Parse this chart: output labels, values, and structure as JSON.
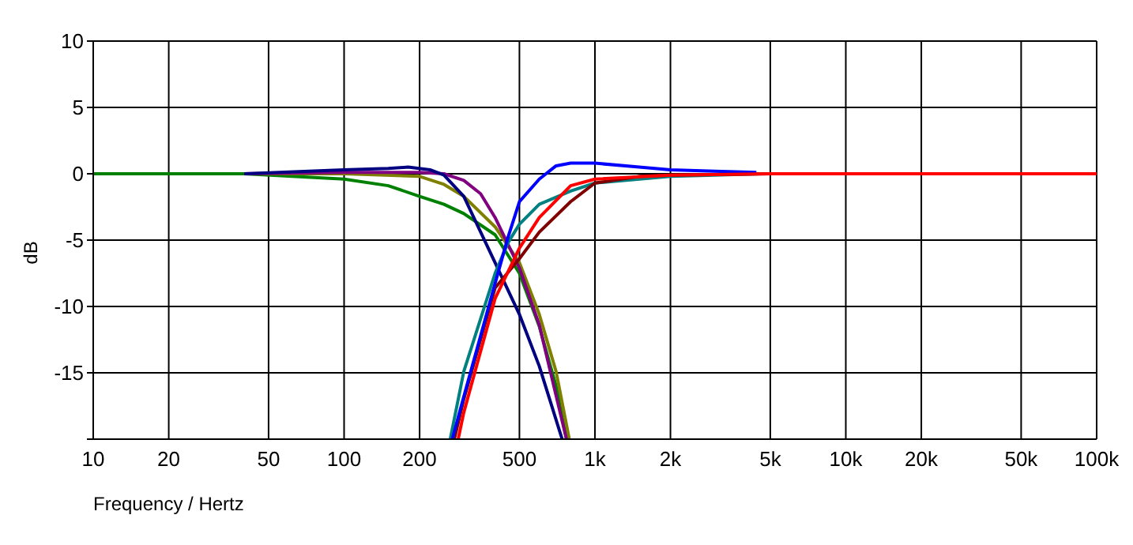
{
  "chart_data": {
    "type": "line",
    "xlabel": "Frequency / Hertz",
    "ylabel": "dB",
    "log": "x",
    "grid": true,
    "marker": "none",
    "line_style": "solid",
    "xlim": [
      10,
      100000
    ],
    "xticks": [
      10,
      20,
      50,
      100,
      200,
      500,
      {
        "value": 1000,
        "label": "1k"
      },
      {
        "value": 2000,
        "label": "2k"
      },
      {
        "value": 5000,
        "label": "5k"
      },
      {
        "value": 10000,
        "label": "10k"
      },
      {
        "value": 20000,
        "label": "20k"
      },
      {
        "value": 50000,
        "label": "50k"
      },
      {
        "value": 100000,
        "label": "100k"
      }
    ],
    "ylim": [
      -20,
      10
    ],
    "yticks": [
      {
        "value": -20,
        "label": null
      },
      -15,
      -10,
      -5,
      0,
      5,
      10
    ],
    "series": [
      {
        "color": "#008000",
        "x": [
          10,
          40,
          100,
          150,
          200,
          250,
          300,
          400,
          500,
          600,
          700,
          770
        ],
        "values": [
          0,
          0,
          -0.4,
          -0.9,
          -1.7,
          -2.3,
          -3.0,
          -4.6,
          -7.5,
          -11.5,
          -16,
          -20
        ]
      },
      {
        "color": "#808000",
        "x": [
          40,
          100,
          200,
          250,
          300,
          400,
          500,
          600,
          700,
          790
        ],
        "values": [
          0,
          0,
          -0.2,
          -0.8,
          -1.7,
          -4,
          -6.7,
          -10.6,
          -14.9,
          -20
        ]
      },
      {
        "color": "#800080",
        "x": [
          40,
          100,
          200,
          250,
          300,
          350,
          400,
          500,
          600,
          770
        ],
        "values": [
          0,
          0.1,
          0.1,
          0,
          -0.5,
          -1.5,
          -3.3,
          -7.1,
          -11.4,
          -20
        ]
      },
      {
        "color": "#000080",
        "x": [
          40,
          100,
          150,
          180,
          220,
          250,
          300,
          400,
          500,
          600,
          740
        ],
        "values": [
          0,
          0.3,
          0.4,
          0.5,
          0.3,
          -0.1,
          -1.7,
          -6.7,
          -10.6,
          -14.5,
          -20
        ]
      },
      {
        "color": "#008080",
        "x": [
          265,
          300,
          400,
          450,
          500,
          600,
          800,
          1000,
          2000,
          3000,
          4500
        ],
        "values": [
          -20,
          -14.9,
          -7.5,
          -5.2,
          -3.8,
          -2.3,
          -1.3,
          -0.7,
          -0.2,
          -0.1,
          0
        ]
      },
      {
        "color": "#800000",
        "x": [
          275,
          300,
          400,
          500,
          600,
          800,
          1000,
          1500,
          2000,
          5000
        ],
        "values": [
          -20,
          -17,
          -8.6,
          -6.4,
          -4.4,
          -2.1,
          -0.7,
          -0.2,
          -0.1,
          0
        ]
      },
      {
        "color": "#0000ff",
        "x": [
          270,
          300,
          390,
          450,
          500,
          600,
          700,
          800,
          1000,
          1500,
          2000,
          3000,
          4400
        ],
        "values": [
          -20,
          -16.8,
          -9,
          -4.8,
          -2.1,
          -0.4,
          0.6,
          0.8,
          0.8,
          0.5,
          0.3,
          0.2,
          0.1
        ]
      },
      {
        "color": "#ff0000",
        "x": [
          285,
          300,
          400,
          500,
          600,
          800,
          1000,
          2000,
          5000,
          100000
        ],
        "values": [
          -20,
          -18,
          -9.4,
          -5.6,
          -3.3,
          -0.9,
          -0.4,
          -0.1,
          0,
          0
        ]
      }
    ]
  }
}
